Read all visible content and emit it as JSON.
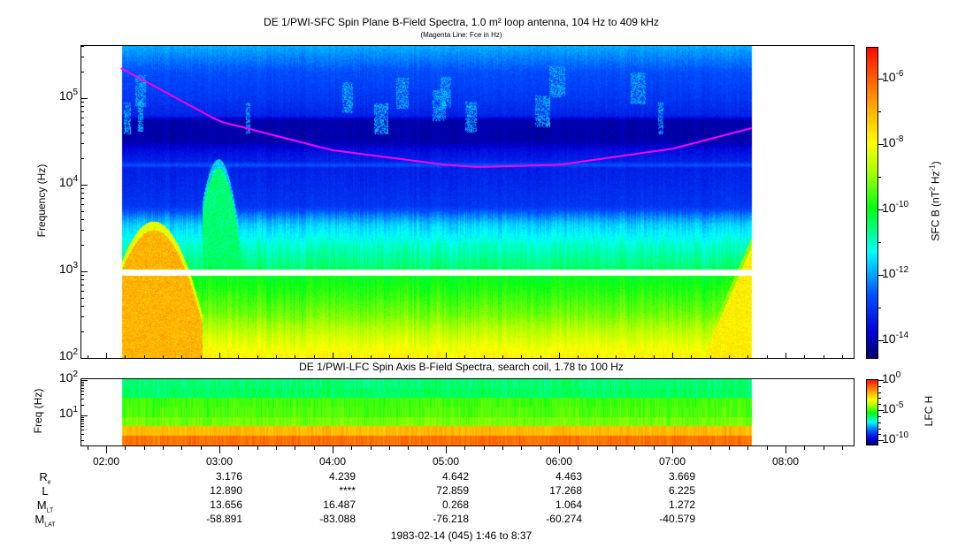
{
  "chart_data": [
    {
      "type": "heatmap",
      "title": "DE 1/PWI-SFC  Spin Plane B-Field Spectra, 1.0 m² loop antenna, 104 Hz to 409 kHz",
      "subtitle": "(Magenta Line: Fce in Hz)",
      "xlabel": "",
      "ylabel": "Frequency (Hz)",
      "xlim_hours": [
        1.767,
        8.617
      ],
      "data_time_range_hours": [
        2.133,
        7.7
      ],
      "ylim_hz": [
        100,
        409000
      ],
      "yscale": "log",
      "y_ticks": [
        {
          "base": "10",
          "exp": "2"
        },
        {
          "base": "10",
          "exp": "3"
        },
        {
          "base": "10",
          "exp": "4"
        },
        {
          "base": "10",
          "exp": "5"
        }
      ],
      "data_gap_hz": [
        910,
        1070
      ],
      "median_spectrum_log10": [
        [
          2.0,
          -7.8
        ],
        [
          2.2,
          -8.3
        ],
        [
          2.5,
          -9.2
        ],
        [
          2.8,
          -9.8
        ],
        [
          2.95,
          -10.0
        ],
        [
          3.05,
          -10.5
        ],
        [
          3.3,
          -11.0
        ],
        [
          3.55,
          -11.7
        ],
        [
          3.65,
          -12.3
        ],
        [
          3.75,
          -13.0
        ],
        [
          4.0,
          -13.2
        ],
        [
          4.2,
          -13.3
        ],
        [
          4.23,
          -12.6
        ],
        [
          4.27,
          -13.3
        ],
        [
          4.4,
          -13.6
        ],
        [
          4.5,
          -14.1
        ],
        [
          4.75,
          -14.1
        ],
        [
          4.8,
          -13.3
        ],
        [
          5.0,
          -13.0
        ],
        [
          5.3,
          -12.7
        ],
        [
          5.5,
          -12.2
        ],
        [
          5.61,
          -11.9
        ]
      ],
      "emission_events": [
        {
          "name": "hiss-left",
          "t_hours": [
            2.13,
            2.85
          ],
          "max_log10_hz": 3.58,
          "level_log10": -7.0
        },
        {
          "name": "hiss-right",
          "t_hours": [
            7.3,
            7.7
          ],
          "max_log10_hz": 3.4,
          "level_log10": -7.8
        },
        {
          "name": "broadband-0300",
          "t_hours": [
            2.85,
            3.2
          ],
          "max_log10_hz": 4.3,
          "level_log10": -10.5
        }
      ],
      "fce_line": {
        "color": "#ff00ff",
        "t_hours": [
          2.13,
          3.0,
          4.0,
          5.0,
          5.28,
          6.0,
          7.0,
          7.7
        ],
        "hz": [
          222000,
          54000,
          25000,
          17000,
          16000,
          17000,
          26000,
          45000
        ]
      },
      "colorbar": {
        "label": "SFC B (nT",
        "label_sup1": "2",
        "label_mid": " Hz",
        "label_sup2": "-1",
        "label_end": ")",
        "range_log10": [
          -14.54,
          -5.03
        ],
        "ticks": [
          {
            "base": "10",
            "exp": "-6"
          },
          {
            "base": "10",
            "exp": "-8"
          },
          {
            "base": "10",
            "exp": "-10"
          },
          {
            "base": "10",
            "exp": "-12"
          },
          {
            "base": "10",
            "exp": "-14"
          }
        ]
      }
    },
    {
      "type": "heatmap",
      "title": "DE 1/PWI-LFC  Spin Axis B-Field Spectra, search coil, 1.78 to 100 Hz",
      "ylabel": "Freq (Hz)",
      "ylim_hz": [
        1.78,
        100
      ],
      "yscale": "log",
      "y_ticks": [
        {
          "base": "10",
          "exp": "1"
        },
        {
          "base": "10",
          "exp": "2"
        }
      ],
      "band_levels_log10_low_to_high": [
        -1.2,
        -2.2,
        -4.6,
        -4.9,
        -5.0,
        -6.0,
        -6.1
      ],
      "colorbar": {
        "label": "LFC H",
        "range_log10": [
          -10.7,
          0.15
        ],
        "ticks": [
          {
            "base": "10",
            "exp": "0"
          },
          {
            "base": "10",
            "exp": "-5"
          },
          {
            "base": "10",
            "exp": "-10"
          }
        ]
      }
    }
  ],
  "x_axis": {
    "ticks": [
      "02:00",
      "03:00",
      "04:00",
      "05:00",
      "06:00",
      "07:00",
      "08:00"
    ]
  },
  "ephemeris": {
    "rows": [
      {
        "label": "R",
        "sub": "e",
        "values": [
          "3.176",
          "4.239",
          "4.642",
          "4.463",
          "3.669"
        ]
      },
      {
        "label": "L",
        "sub": "",
        "values": [
          "12.890",
          "****",
          "72.859",
          "17.268",
          "6.225"
        ]
      },
      {
        "label": "M",
        "sub": "LT",
        "values": [
          "13.656",
          "16.487",
          "0.268",
          "1.064",
          "1.272"
        ]
      },
      {
        "label": "M",
        "sub": "LAT",
        "values": [
          "-58.891",
          "-83.088",
          "-76.218",
          "-60.274",
          "-40.579"
        ]
      }
    ]
  },
  "footer": "1983-02-14 (045) 1:46 to 8:37"
}
